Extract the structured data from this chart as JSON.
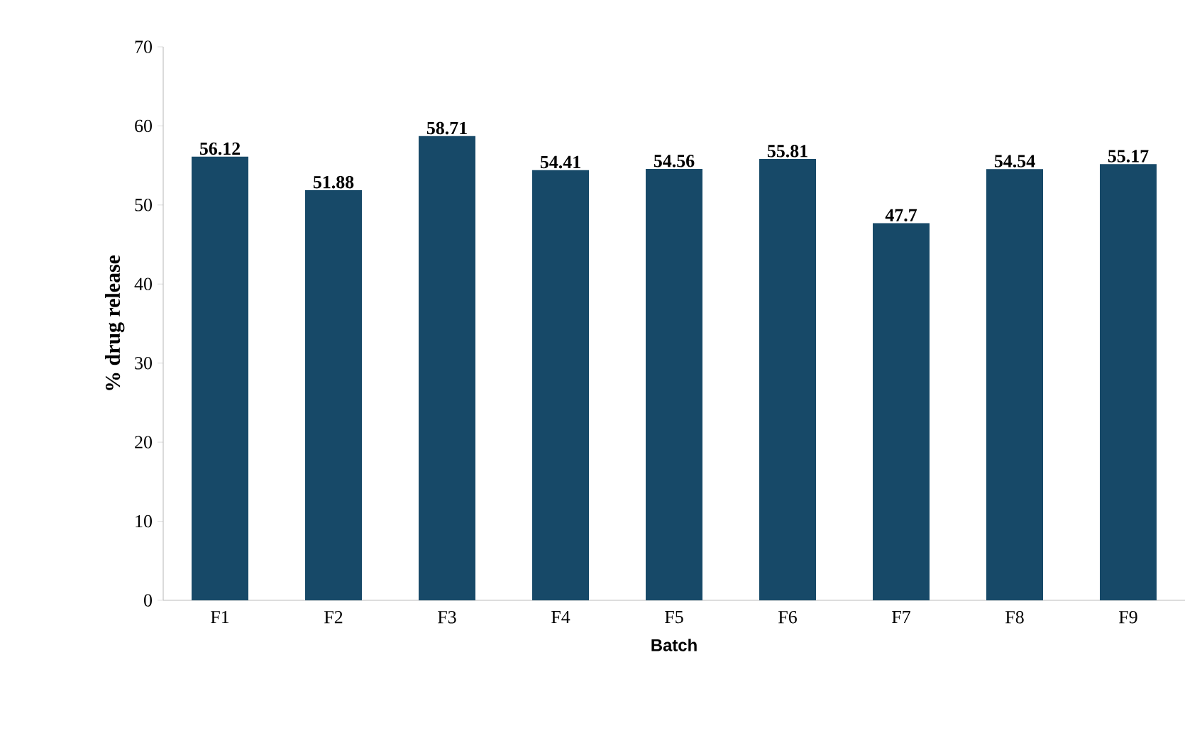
{
  "chart_data": {
    "type": "bar",
    "xlabel": "Batch",
    "ylabel": "% drug release",
    "categories": [
      "F1",
      "F2",
      "F3",
      "F4",
      "F5",
      "F6",
      "F7",
      "F8",
      "F9"
    ],
    "values": [
      56.12,
      51.88,
      58.71,
      54.41,
      54.56,
      55.81,
      47.7,
      54.54,
      55.17
    ],
    "color": "#174968",
    "ylim": [
      0,
      70
    ],
    "yticks": [
      0,
      10,
      20,
      30,
      40,
      50,
      60,
      70
    ],
    "data_labels": true
  }
}
